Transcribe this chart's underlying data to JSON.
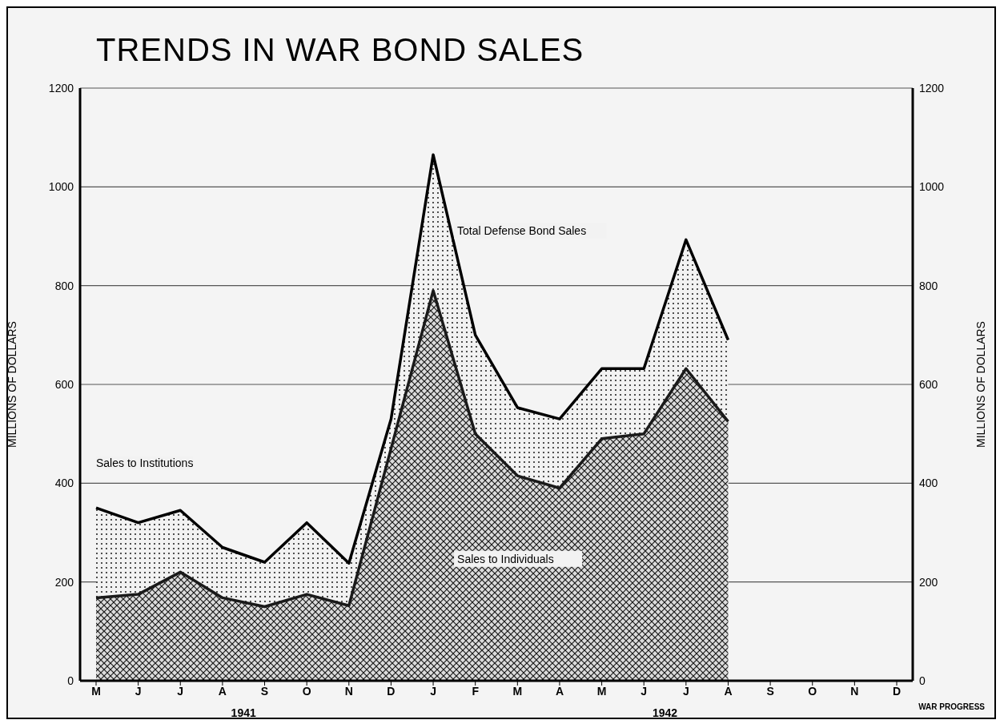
{
  "chart_data": {
    "type": "area",
    "title": "TRENDS IN WAR BOND SALES",
    "ylabel": "MILLIONS OF DOLLARS",
    "y2label": "MILLIONS OF DOLLARS",
    "categories": [
      "M",
      "J",
      "J",
      "A",
      "S",
      "O",
      "N",
      "D",
      "J",
      "F",
      "M",
      "A",
      "M",
      "J",
      "J",
      "A",
      "S",
      "O",
      "N",
      "D"
    ],
    "series": [
      {
        "name": "Total Defense Bond Sales",
        "color": "#000000",
        "values": [
          350,
          320,
          345,
          270,
          240,
          320,
          238,
          530,
          1065,
          700,
          553,
          530,
          632,
          632,
          893,
          690,
          null,
          null,
          null,
          null
        ]
      },
      {
        "name": "Sales to Individuals",
        "color": "#1a1a1a",
        "values": [
          168,
          175,
          220,
          168,
          150,
          175,
          152,
          470,
          790,
          500,
          415,
          390,
          490,
          500,
          632,
          525,
          null,
          null,
          null,
          null
        ]
      }
    ],
    "ylim": [
      0,
      1200
    ],
    "yticks": [
      0,
      200,
      400,
      600,
      800,
      1000,
      1200
    ],
    "y2lim": [
      0,
      1200
    ],
    "y2ticks": [
      0,
      200,
      400,
      600,
      800,
      1000,
      1200
    ],
    "grid": "y",
    "legend": false,
    "annotations": [
      "Sales to Institutions",
      "1941",
      "1942",
      "WAR PROGRESS"
    ]
  }
}
